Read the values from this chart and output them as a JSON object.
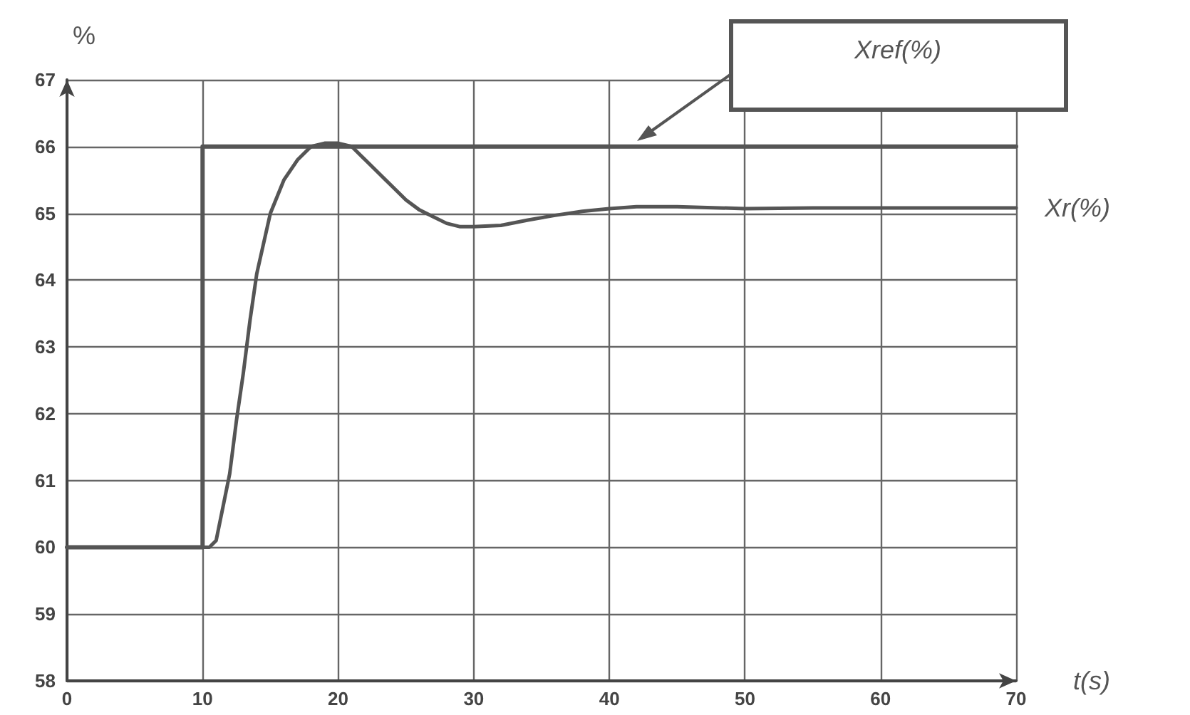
{
  "chart_data": {
    "type": "line",
    "xlabel": "t(s)",
    "ylabel": "%",
    "xlim": [
      0,
      70
    ],
    "ylim": [
      58,
      67
    ],
    "xticks": [
      0,
      10,
      20,
      30,
      40,
      50,
      60,
      70
    ],
    "yticks": [
      58,
      59,
      60,
      61,
      62,
      63,
      64,
      65,
      66,
      67
    ],
    "grid": true,
    "legend": false,
    "marker": "none",
    "line_style": "solid",
    "series": [
      {
        "name": "Xref(%)",
        "type": "step",
        "color": "#555555",
        "x": [
          0,
          10,
          70
        ],
        "values": [
          60,
          66,
          66
        ]
      },
      {
        "name": "Xr(%)",
        "color": "#555555",
        "x": [
          0,
          10.5,
          11,
          11.5,
          12,
          12.5,
          13,
          13.5,
          14,
          15,
          16,
          17,
          18,
          19,
          20,
          21,
          22,
          23,
          24,
          25,
          26,
          27,
          28,
          29,
          30,
          32,
          34,
          36,
          38,
          40,
          42,
          45,
          50,
          55,
          60,
          65,
          70
        ],
        "values": [
          60,
          60,
          60.1,
          60.6,
          61.1,
          61.9,
          62.6,
          63.4,
          64.1,
          65,
          65.5,
          65.8,
          66,
          66.05,
          66.05,
          66,
          65.8,
          65.6,
          65.4,
          65.2,
          65.05,
          64.95,
          64.85,
          64.8,
          64.8,
          64.82,
          64.9,
          64.97,
          65.03,
          65.07,
          65.1,
          65.1,
          65.07,
          65.08,
          65.08,
          65.08,
          65.08
        ]
      }
    ]
  }
}
